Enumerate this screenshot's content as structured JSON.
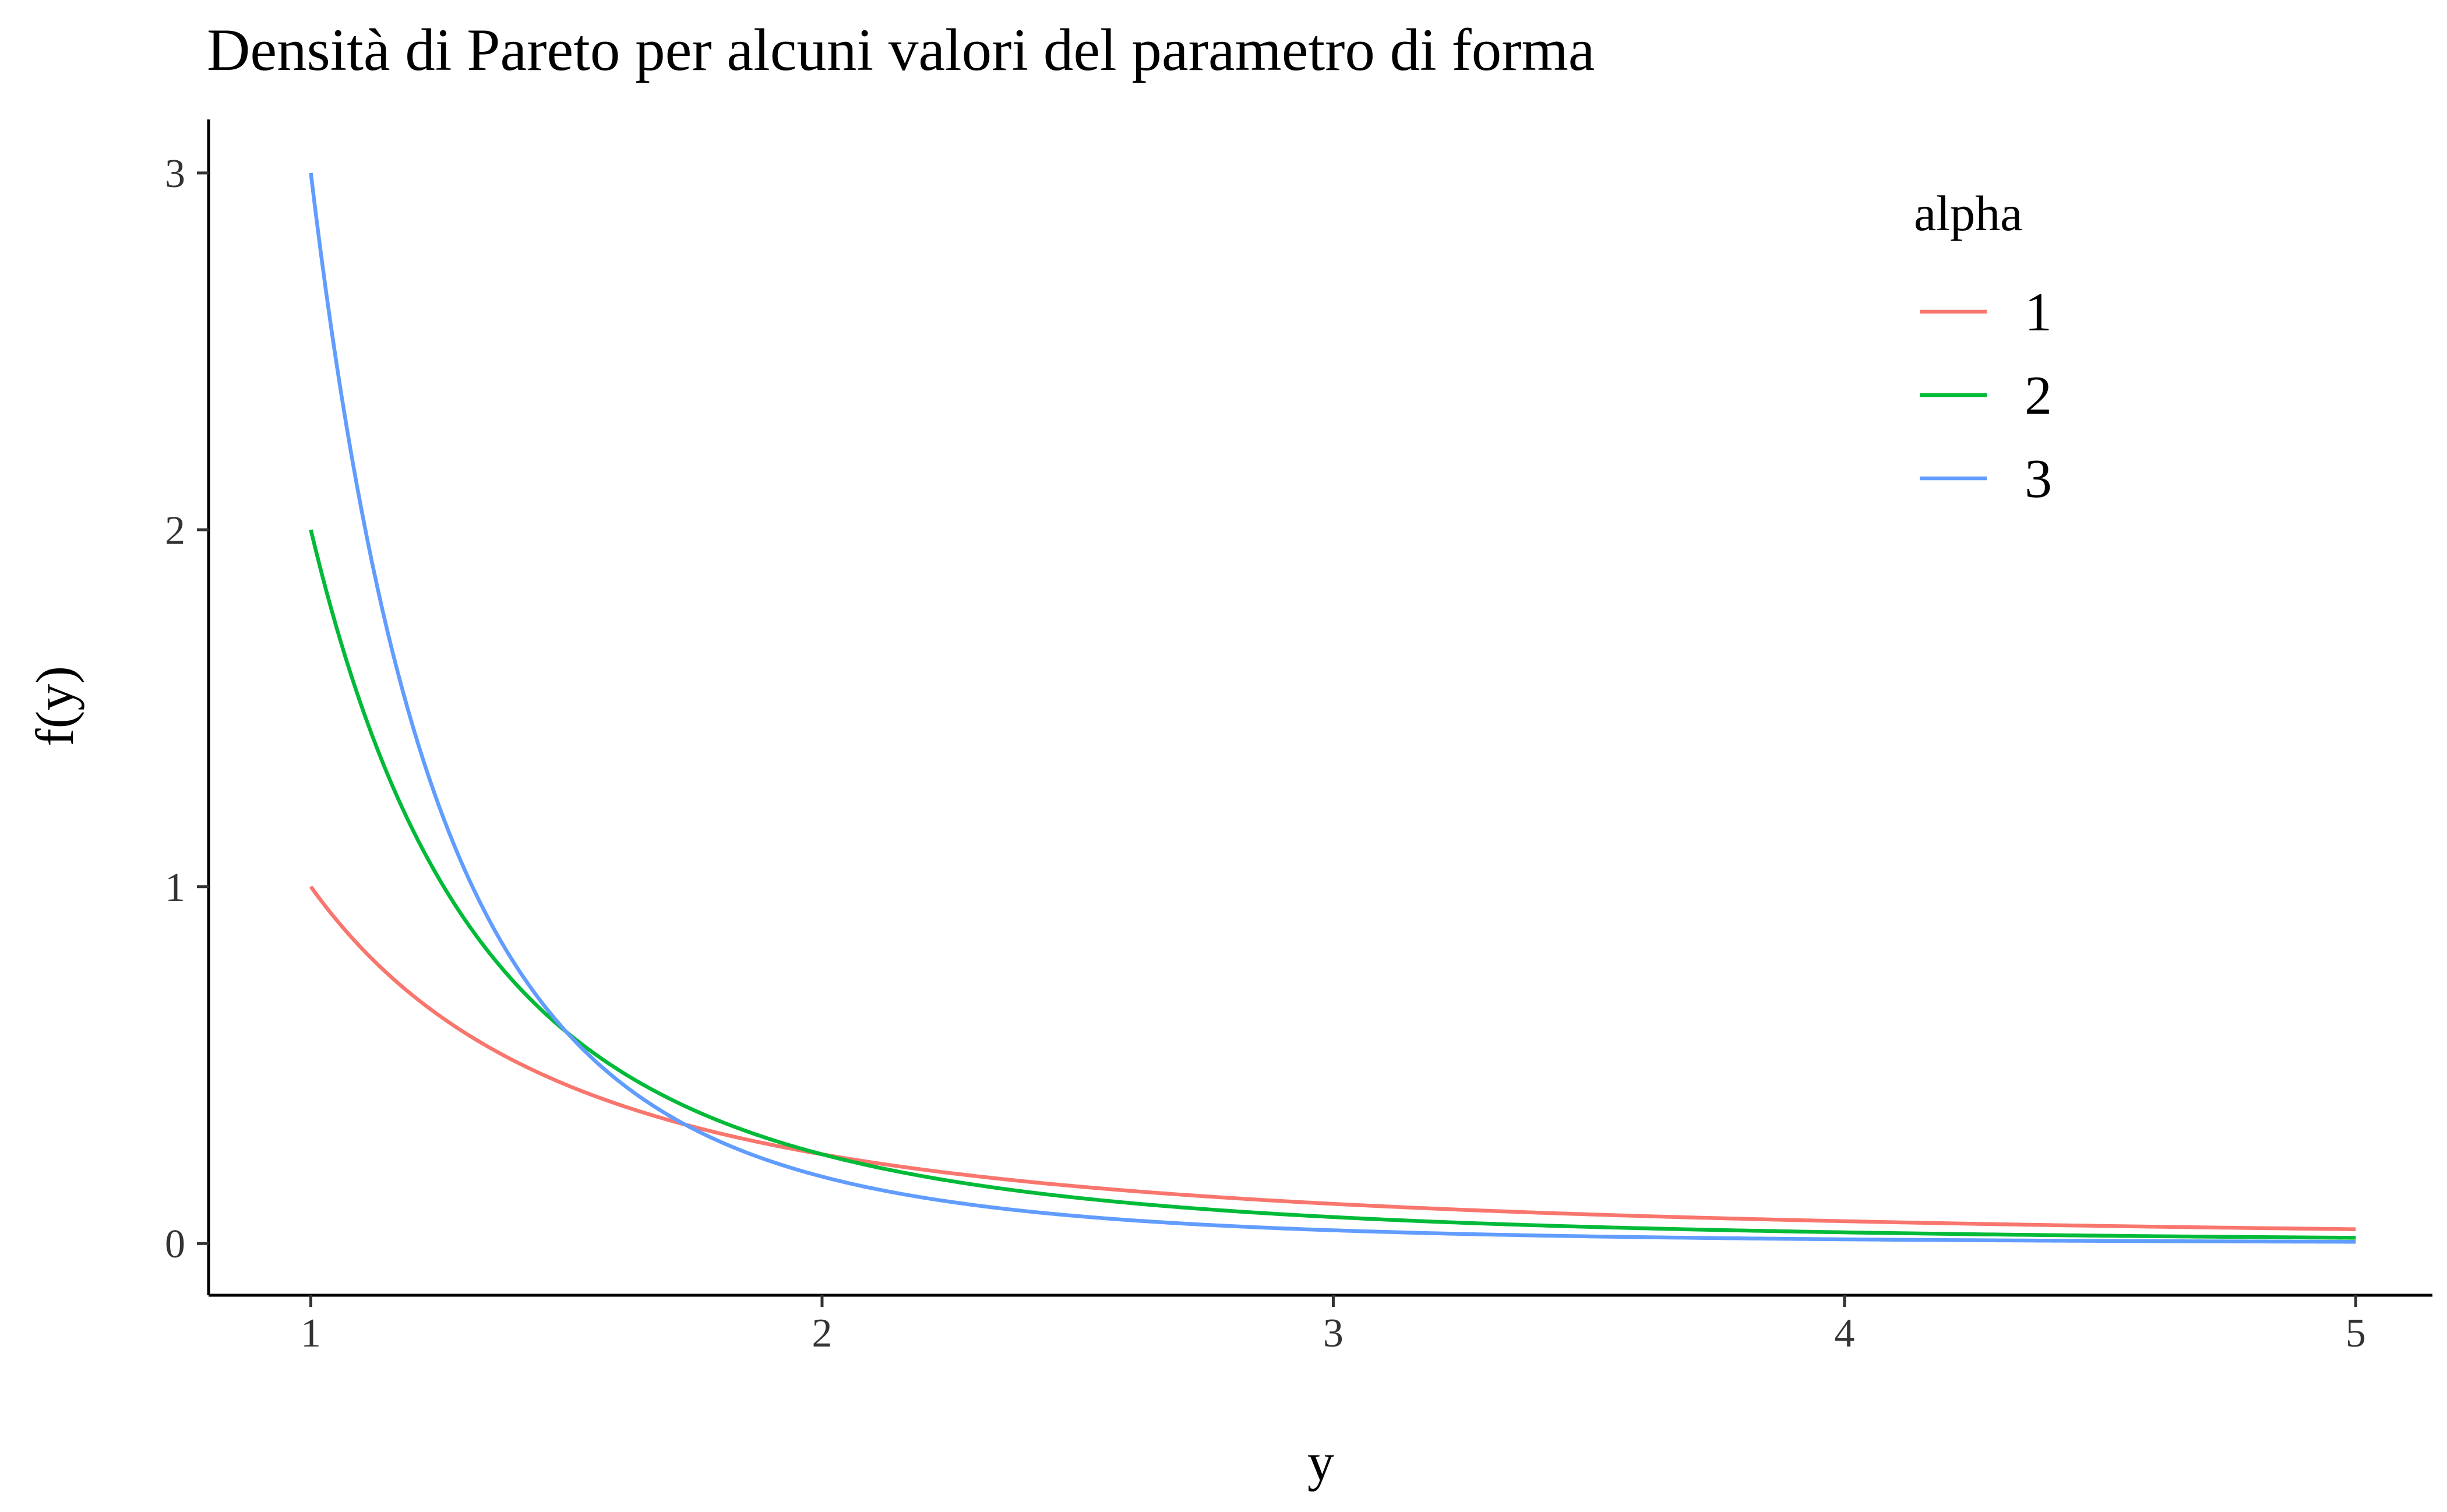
{
  "chart_data": {
    "type": "line",
    "title": "Densità di Pareto per alcuni valori del parametro di forma",
    "xlabel": "y",
    "ylabel": "f(y)",
    "xlim": [
      0.8,
      5.15
    ],
    "ylim": [
      -0.145,
      3.15
    ],
    "x_ticks": [
      "1",
      "2",
      "3",
      "4",
      "5"
    ],
    "y_ticks": [
      "0",
      "1",
      "2",
      "3"
    ],
    "grid": false,
    "legend": {
      "title": "alpha",
      "position": "top-right"
    },
    "x_domain": [
      1,
      5
    ],
    "formula": "alpha / y^(alpha+1)",
    "series": [
      {
        "name": "1",
        "alpha": 1,
        "color": "#F8766D"
      },
      {
        "name": "2",
        "alpha": 2,
        "color": "#00BA38"
      },
      {
        "name": "3",
        "alpha": 3,
        "color": "#619CFF"
      }
    ]
  }
}
